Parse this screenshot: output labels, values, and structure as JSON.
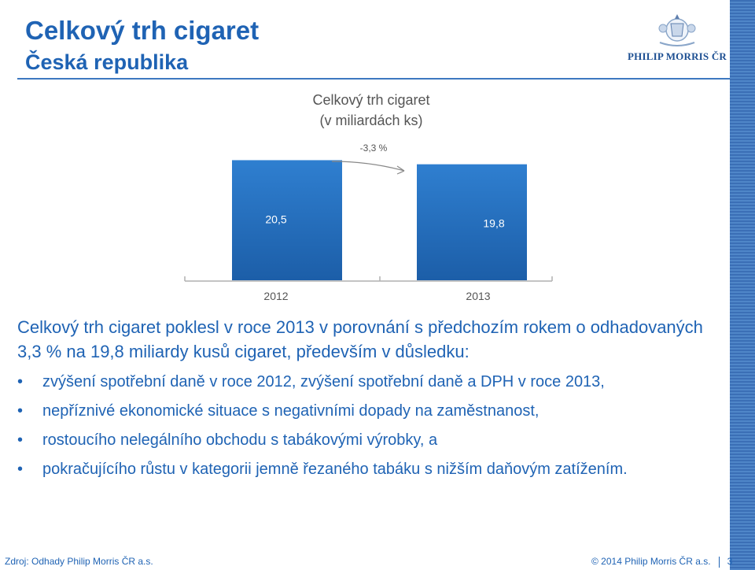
{
  "header": {
    "title": "Celkový trh cigaret",
    "subtitle": "Česká republika"
  },
  "logo": {
    "text": "PHILIP MORRIS ČR"
  },
  "colors": {
    "accent": "#1f63b4",
    "bar": "#2f7fd0",
    "bar_dark": "#1c5ea8"
  },
  "chart_data": {
    "type": "bar",
    "title": "Celkový trh cigaret",
    "subtitle": "(v miliardách ks)",
    "categories": [
      "2012",
      "2013"
    ],
    "values": [
      20.5,
      19.8
    ],
    "value_labels": [
      "20,5",
      "19,8"
    ],
    "change_label": "-3,3 %",
    "ylim": [
      0,
      21.5
    ],
    "grid": false
  },
  "body": {
    "intro": "Celkový trh cigaret poklesl v roce 2013 v porovnání s předchozím rokem o odhadovaných 3,3 % na 19,8 miliardy kusů cigaret, především v důsledku:",
    "bullet_symbol": "•",
    "points": [
      "zvýšení spotřební daně v roce 2012, zvýšení spotřební daně a DPH v roce 2013,",
      "nepříznivé ekonomické situace s negativními dopady na zaměstnanost,",
      "rostoucího nelegálního obchodu s tabákovými výrobky, a",
      "pokračujícího růstu v kategorii jemně řezaného tabáku s nižším daňovým zatížením."
    ]
  },
  "footer": {
    "source": "Zdroj: Odhady Philip Morris ČR a.s.",
    "copyright": "© 2014 Philip Morris ČR a.s.",
    "page_number": "3"
  }
}
